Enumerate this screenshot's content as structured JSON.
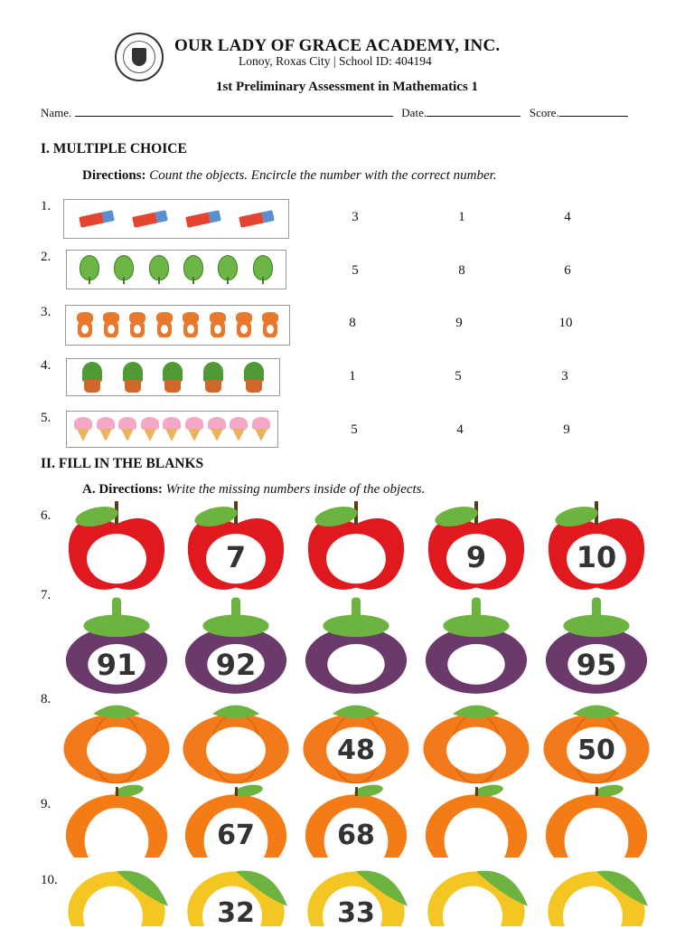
{
  "header": {
    "school_name": "OUR LADY OF GRACE ACADEMY, INC.",
    "address": "Lonoy, Roxas City | School ID: 404194",
    "exam_title": "1st Preliminary Assessment in Mathematics 1",
    "name_label": "Name.",
    "date_label": "Date.",
    "score_label": "Score."
  },
  "part1": {
    "title": "I. MULTIPLE CHOICE",
    "directions_label": "Directions:",
    "directions_text": " Count the objects. Encircle the number with the correct number.",
    "items": [
      {
        "num": "1.",
        "object": "eraser-icon",
        "count": 4,
        "choices": [
          "3",
          "1",
          "4"
        ]
      },
      {
        "num": "2.",
        "object": "leaf-icon",
        "count": 6,
        "choices": [
          "5",
          "8",
          "6"
        ]
      },
      {
        "num": "3.",
        "object": "fox-icon",
        "count": 8,
        "choices": [
          "8",
          "9",
          "10"
        ]
      },
      {
        "num": "4.",
        "object": "potted-plant-icon",
        "count": 5,
        "choices": [
          "1",
          "5",
          "3"
        ]
      },
      {
        "num": "5.",
        "object": "ice-cream-icon",
        "count": 9,
        "choices": [
          "5",
          "4",
          "9"
        ]
      }
    ]
  },
  "part2": {
    "title": "II. FILL IN THE BLANKS",
    "directions_label": "A. Directions:",
    "directions_text": " Write the missing numbers inside of the objects.",
    "rows": [
      {
        "num": "6.",
        "fruit": "apple",
        "color": "#e0191f",
        "values": [
          "",
          "7",
          "",
          "9",
          "10"
        ]
      },
      {
        "num": "7.",
        "fruit": "mangosteen",
        "color": "#6b3a6b",
        "values": [
          "91",
          "92",
          "",
          "",
          "95"
        ]
      },
      {
        "num": "8.",
        "fruit": "pumpkin",
        "color": "#f27a1a",
        "values": [
          "",
          "",
          "48",
          "",
          "50"
        ]
      },
      {
        "num": "9.",
        "fruit": "orange",
        "color": "#f47c16",
        "values": [
          "",
          "67",
          "68",
          "",
          ""
        ]
      },
      {
        "num": "10.",
        "fruit": "mango",
        "color": "#f3c623",
        "values": [
          "",
          "32",
          "33",
          "",
          ""
        ]
      }
    ]
  }
}
